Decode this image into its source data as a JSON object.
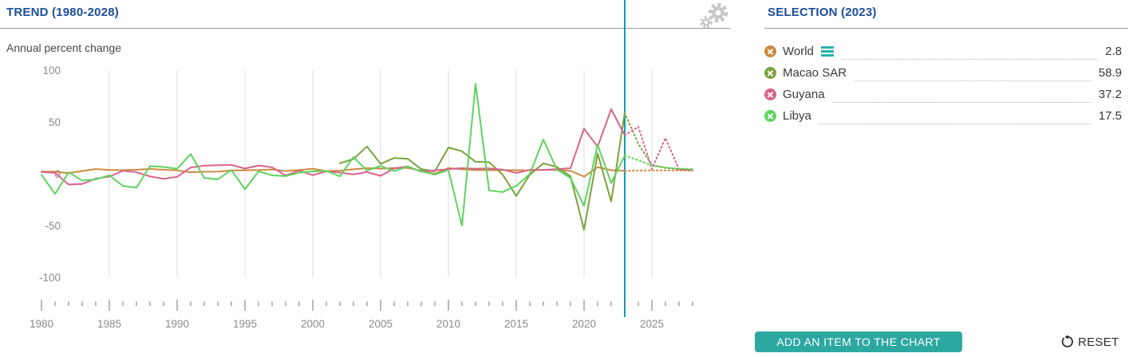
{
  "trend_panel": {
    "title": "TREND (1980-2028)",
    "subtitle": "Annual percent change"
  },
  "selection_panel": {
    "title": "SELECTION (2023)",
    "items": [
      {
        "label": "World",
        "value": "2.8",
        "color": "#cb8a3f"
      },
      {
        "label": "Macao SAR",
        "value": "58.9",
        "color": "#7ca23d"
      },
      {
        "label": "Guyana",
        "value": "37.2",
        "color": "#d8638c"
      },
      {
        "label": "Libya",
        "value": "17.5",
        "color": "#5ed45e"
      }
    ],
    "add_button_label": "ADD AN ITEM TO THE CHART",
    "reset_label": "RESET"
  },
  "icons": {
    "settings": "gear-icon",
    "remove": "circle-x-remove-icon",
    "drag": "drag-handle-icon",
    "reset": "reset-circular-arrow-icon"
  },
  "chart_data": {
    "type": "line",
    "title": "TREND (1980-2028)",
    "ylabel": "Annual percent change",
    "x_start": 1980,
    "x_end": 2028,
    "selection_year": 2023,
    "projection_from": 2023,
    "ylim": [
      -100,
      100
    ],
    "yticks": [
      100,
      50,
      0,
      -50,
      -100
    ],
    "xticks_labeled": [
      1980,
      1985,
      1990,
      1995,
      2000,
      2005,
      2010,
      2015,
      2020,
      2025
    ],
    "grid_years": [
      1985,
      1990,
      1995,
      2000,
      2005,
      2010,
      2015,
      2020,
      2025
    ],
    "grid_on": true,
    "legend_position": "right-panel",
    "colors": {
      "selection_line": "#089fb4",
      "grid": "#dcdcdc",
      "tick": "#71717f",
      "axis_label": "#8b8b8b"
    },
    "series": [
      {
        "name": "World",
        "color": "#cb8a3f",
        "values": [
          2.1,
          1.9,
          0.6,
          2.6,
          4.5,
          3.7,
          3.5,
          3.8,
          4.6,
          3.8,
          3.3,
          1.4,
          1.9,
          2.0,
          3.2,
          3.4,
          3.6,
          4.1,
          2.6,
          3.6,
          4.8,
          2.5,
          3.0,
          4.3,
          5.4,
          4.9,
          5.5,
          5.6,
          3.0,
          -0.1,
          5.4,
          4.3,
          3.5,
          3.5,
          3.5,
          3.4,
          3.3,
          3.8,
          3.6,
          2.8,
          -2.8,
          6.3,
          3.4,
          2.8,
          3.0,
          3.2,
          3.2,
          3.1,
          3.0
        ]
      },
      {
        "name": "Macao SAR",
        "color": "#7ca23d",
        "values": [
          null,
          null,
          null,
          null,
          null,
          null,
          null,
          null,
          null,
          null,
          null,
          null,
          null,
          null,
          null,
          null,
          null,
          null,
          null,
          null,
          null,
          null,
          10.1,
          14.2,
          26.3,
          9.5,
          15.2,
          14.4,
          4.4,
          2.3,
          25.3,
          21.7,
          11.5,
          11.2,
          -0.9,
          -21.5,
          -0.9,
          10.0,
          6.5,
          -2.5,
          -54.2,
          19.5,
          -26.8,
          58.9,
          28.9,
          8.5,
          5.5,
          4.5,
          3.8
        ]
      },
      {
        "name": "Guyana",
        "color": "#d8638c",
        "values": [
          1.6,
          0.9,
          -10.4,
          -9.9,
          -4.8,
          -2.8,
          2.8,
          1.5,
          -2.6,
          -4.9,
          -3.0,
          6.0,
          7.8,
          8.2,
          8.5,
          5.0,
          7.9,
          6.2,
          -1.7,
          3.0,
          -1.4,
          2.3,
          1.1,
          -0.7,
          1.6,
          -2.0,
          5.1,
          7.0,
          2.0,
          3.3,
          4.4,
          5.4,
          4.8,
          5.2,
          3.9,
          0.7,
          3.8,
          3.7,
          4.4,
          5.4,
          43.5,
          26.0,
          62.3,
          37.2,
          45.3,
          4.5,
          34.5,
          4.0,
          3.5
        ]
      },
      {
        "name": "Libya",
        "color": "#5ed45e",
        "values": [
          -1.0,
          -19.5,
          1.5,
          -6.5,
          -5.5,
          -1.5,
          -11.8,
          -13.5,
          7.4,
          6.5,
          4.8,
          19.0,
          -4.1,
          -5.4,
          3.6,
          -15.0,
          2.3,
          -1.5,
          -2.3,
          1.0,
          2.3,
          2.7,
          -2.5,
          16.0,
          3.0,
          7.5,
          2.5,
          6.9,
          2.3,
          -0.8,
          3.5,
          -50.2,
          86.8,
          -16.2,
          -17.7,
          -11.8,
          -0.3,
          33.0,
          4.0,
          -4.1,
          -31.0,
          28.0,
          -9.0,
          17.5,
          13.0,
          8.0,
          6.0,
          5.0,
          4.5
        ]
      }
    ]
  }
}
